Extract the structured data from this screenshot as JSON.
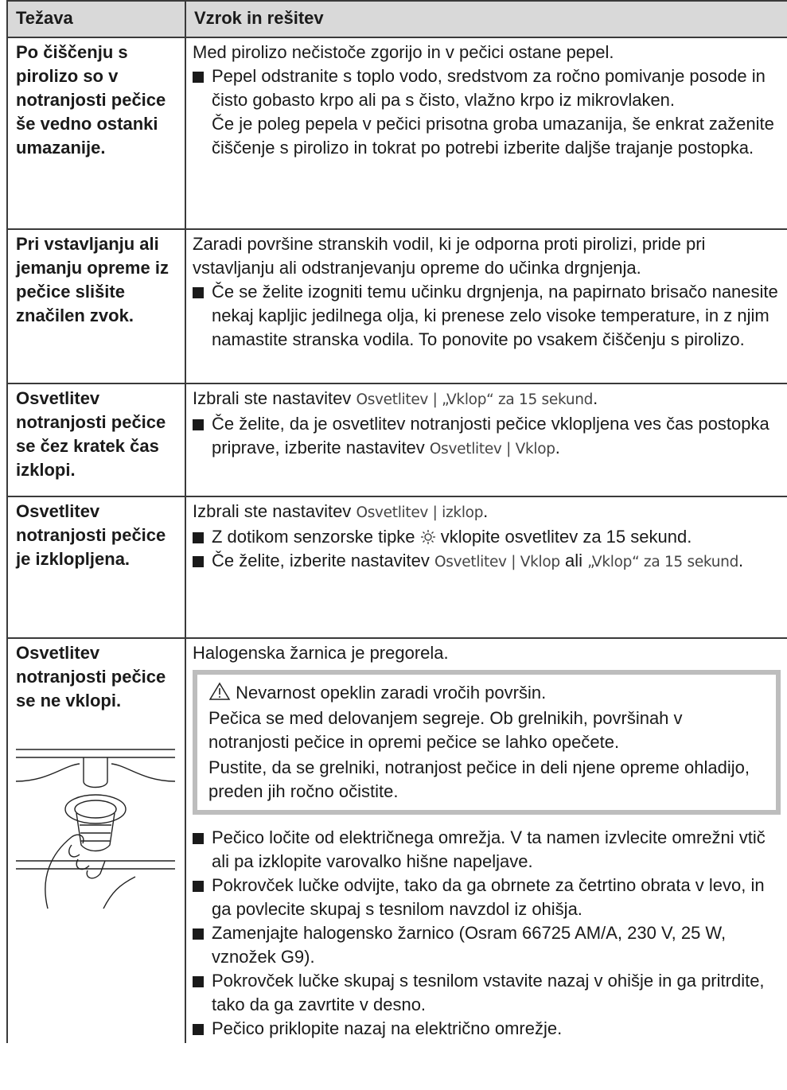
{
  "header": {
    "problem": "Težava",
    "solution": "Vzrok in rešitev"
  },
  "rows": [
    {
      "problem": "Po čiščenju s pirolizo so v notranjosti pečice še vedno ostanki umazanije.",
      "cause": [
        "Med pirolizo nečistoče zgorijo in v pečici ostane pepel."
      ],
      "steps": [
        [
          "Pepel odstranite s toplo vodo, sredstvom za ročno pomivanje posode in čisto gobasto krpo ali pa s čisto, vlažno krpo iz mikrovlaken.",
          "Če je poleg pepela v pečici prisotna groba umazanija, še enkrat zaženite čiščenje s pirolizo in tokrat po potrebi izberite daljše trajanje postopka."
        ]
      ]
    },
    {
      "problem": "Pri vstavljanju ali jemanju opreme iz pečice slišite značilen zvok.",
      "cause": [
        "Zaradi površine stranskih vodil, ki je odporna proti pirolizi, pride pri vstavljanju ali odstranjevanju opreme do učinka drgnjenja."
      ],
      "steps": [
        [
          "Če se želite izogniti temu učinku drgnjenja, na papirnato brisačo nanesite nekaj kapljic jedilnega olja, ki prenese zelo visoke temperature, in z njim namastite stranska vodila. To ponovite po vsakem čiščenju s pirolizo."
        ]
      ]
    },
    {
      "problem": "Osvetlitev notranjosti pečice se čez kratek čas izklopi.",
      "cause": [
        "Izbrali ste nastavitev",
        "Osvetlitev | „Vklop“ za 15 sekund",
        "."
      ],
      "steps": [
        [
          "Če želite, da je osvetlitev notranjosti pečice vklopljena ves čas postopka priprave, izberite nastavitev",
          "Osvetlitev | Vklop",
          "."
        ]
      ]
    },
    {
      "problem": "Osvetlitev notranjosti pečice je izklopljena.",
      "cause": [
        "Izbrali ste nastavitev",
        "Osvetlitev | izklop",
        "."
      ],
      "steps": [
        [
          "Z dotikom senzorske tipke",
          "vklopite osvetlitev za 15 sekund."
        ],
        [
          "Če želite, izberite nastavitev",
          "Osvetlitev | Vklop",
          "ali",
          "„Vklop“ za 15 sekund",
          "."
        ]
      ]
    },
    {
      "problem": "Osvetlitev notranjosti pečice se ne vklopi.",
      "cause": [
        "Halogenska žarnica je pregorela."
      ],
      "warning": {
        "title": "Nevarnost opeklin zaradi vročih površin.",
        "text": [
          "Pečica se med delovanjem segreje. Ob grelnikih, površinah v notranjosti pečice in opremi pečice se lahko opečete.",
          "Pustite, da se grelniki, notranjost pečice in deli njene opreme ohladijo, preden jih ročno očistite."
        ]
      },
      "steps": [
        [
          "Pečico ločite od električnega omrežja. V ta namen izvlecite omrežni vtič ali pa izklopite varovalko hišne napeljave."
        ],
        [
          "Pokrovček lučke odvijte, tako da ga obrnete za četrtino obrata v levo, in ga povlecite skupaj s tesnilom navzdol iz ohišja."
        ],
        [
          "Zamenjajte halogensko žarnico (Osram 66725 AM/A, 230 V, 25 W, vznožek G9)."
        ],
        [
          "Pokrovček lučke skupaj s tesnilom vstavite nazaj v ohišje in ga pritrdite, tako da ga zavrtite v desno."
        ],
        [
          "Pečico priklopite nazaj na električno omrežje."
        ]
      ]
    }
  ]
}
